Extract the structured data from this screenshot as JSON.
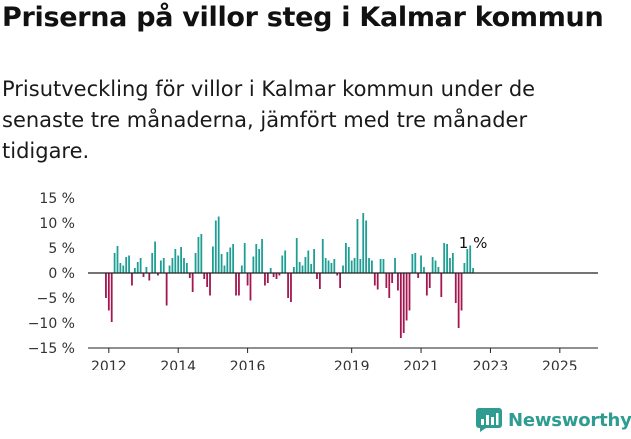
{
  "header": {
    "title": "Priserna på villor steg i Kalmar kommun",
    "subtitle": "Prisutveckling för villor i Kalmar kommun under de senaste tre månaderna, jämfört med tre månader tidigare."
  },
  "brand": {
    "name": "Newsworthy",
    "icon": "newsworthy-logo-icon",
    "color": "#2e9c90"
  },
  "chart_data": {
    "type": "bar",
    "title": "",
    "xlabel": "",
    "ylabel": "",
    "ylim": [
      -15,
      15
    ],
    "yticks": [
      15,
      10,
      5,
      0,
      -5,
      -10,
      -15
    ],
    "ytick_labels": [
      "15 %",
      "10 %",
      "5 %",
      "0 %",
      "−5 %",
      "−10 %",
      "−15 %"
    ],
    "x_start": 2011.917,
    "x_step": 0.08333,
    "xlim": [
      2011.4,
      2026.1
    ],
    "xticks": [
      2012,
      2014,
      2016,
      2019,
      2021,
      2023,
      2025
    ],
    "xtick_labels": [
      "2012",
      "2014",
      "2016",
      "2019",
      "2021",
      "2023",
      "2025"
    ],
    "positive_color": "#1f9e94",
    "negative_color": "#a3164f",
    "grid": false,
    "annotation": {
      "text": "1 %",
      "at_last_value": true
    },
    "values": [
      -5,
      -7.5,
      -9.8,
      4,
      5.4,
      2,
      1.5,
      3.2,
      3.5,
      -2.5,
      1,
      2.2,
      3,
      -0.8,
      1.2,
      -1.5,
      4,
      6.3,
      -0.5,
      2.5,
      3,
      -6.5,
      1.5,
      3,
      4.8,
      3.5,
      5.2,
      3,
      2,
      -1,
      -3.8,
      4,
      7.2,
      7.8,
      -1.2,
      -2.8,
      -4.5,
      5.3,
      10.5,
      11.3,
      3.8,
      1.5,
      4.2,
      5.1,
      5.8,
      -4.5,
      -4.5,
      1.5,
      6,
      -2.5,
      -5.5,
      3.3,
      5.8,
      4.8,
      6.8,
      -2.5,
      -2,
      1,
      -0.8,
      -1.2,
      -0.5,
      3.5,
      4.5,
      -5,
      -5.8,
      1.2,
      7,
      2.2,
      1.5,
      3.2,
      4.5,
      1.8,
      4.8,
      -1.2,
      -3.2,
      6.8,
      3,
      2.5,
      2,
      2.8,
      -0.5,
      -3,
      1.5,
      6,
      5.2,
      2.5,
      3,
      10.8,
      2.8,
      12,
      10.5,
      3,
      2.5,
      -2.5,
      -3.3,
      2.8,
      2.8,
      -3,
      -5,
      -2,
      3,
      -3.5,
      -13,
      -12,
      -9.5,
      -7.5,
      3.8,
      4,
      -1,
      3.5,
      1.2,
      -4.5,
      -3,
      3.2,
      2.5,
      1.2,
      -4.8,
      6,
      5.8,
      3,
      4,
      -6,
      -11,
      -7.5,
      2,
      4.8,
      5.5,
      1
    ]
  }
}
